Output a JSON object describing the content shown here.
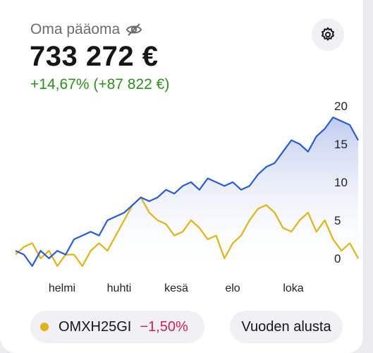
{
  "header": {
    "title": "Oma pääoma",
    "value": "733 272 €",
    "change": "+14,67% (+87 822 €)"
  },
  "icons": {
    "visibility": "eye-slash-icon",
    "settings": "gear-icon"
  },
  "colors": {
    "portfolio_line": "#2a5bd7",
    "benchmark_line": "#e0b317",
    "positive": "#2f8f1c",
    "negative": "#cc1f5b",
    "area_fill": "#c9d3f0"
  },
  "chart": {
    "y_ticks": [
      "20",
      "15",
      "10",
      "5",
      "0"
    ],
    "x_ticks": [
      "helmi",
      "huhti",
      "kesä",
      "elo",
      "loka"
    ]
  },
  "chart_data": {
    "type": "line",
    "ylim": [
      0,
      20
    ],
    "y_ticks": [
      0,
      5,
      10,
      15,
      20
    ],
    "x_ticks": [
      "helmi",
      "huhti",
      "kesä",
      "elo",
      "loka"
    ],
    "grid": false,
    "series": [
      {
        "name": "",
        "color": "#2a5bd7",
        "values": [
          1,
          0.5,
          -1,
          1,
          0,
          1,
          0.5,
          2.5,
          3,
          3.5,
          3,
          5,
          5.5,
          6,
          7,
          8,
          7.5,
          8,
          9,
          8.5,
          9.5,
          10,
          9,
          10.5,
          10,
          9.5,
          10,
          9,
          9.5,
          11,
          12,
          12.5,
          14,
          15.5,
          15,
          14,
          16,
          17,
          18.5,
          18,
          17.5,
          15.5
        ]
      },
      {
        "name": "",
        "color": "#e0b317",
        "values": [
          0.5,
          1.5,
          2,
          0,
          1,
          -1,
          0.5,
          0.5,
          -1,
          1,
          2,
          1,
          3,
          5,
          7,
          8,
          6,
          5,
          4.5,
          3,
          3.5,
          5,
          4,
          2.5,
          3,
          0,
          2,
          3,
          5,
          6.5,
          7,
          6,
          4,
          3.5,
          5,
          6,
          3.5,
          5,
          2.5,
          1,
          2,
          0
        ]
      }
    ],
    "legend": [
      {
        "name": "OMXH25GI",
        "change": "−1,50%"
      }
    ]
  },
  "footer": {
    "index_name": "OMXH25GI",
    "index_change": "−1,50%",
    "period_label": "Vuoden alusta"
  }
}
